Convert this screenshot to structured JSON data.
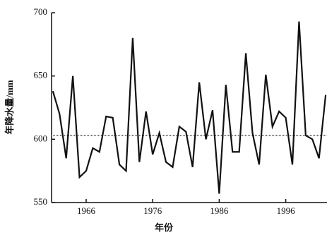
{
  "chart_data": {
    "type": "line",
    "x_label": "年份",
    "y_label": "年降水量/mm",
    "x": [
      1961,
      1962,
      1963,
      1964,
      1965,
      1966,
      1967,
      1968,
      1969,
      1970,
      1971,
      1972,
      1973,
      1974,
      1975,
      1976,
      1977,
      1978,
      1979,
      1980,
      1981,
      1982,
      1983,
      1984,
      1985,
      1986,
      1987,
      1988,
      1989,
      1990,
      1991,
      1992,
      1993,
      1994,
      1995,
      1996,
      1997,
      1998,
      1999,
      2000,
      2001,
      2002
    ],
    "series": [
      {
        "color": "#111111",
        "values": [
          638,
          620,
          585,
          650,
          570,
          575,
          593,
          590,
          618,
          617,
          580,
          575,
          680,
          582,
          622,
          588,
          605,
          582,
          578,
          610,
          606,
          578,
          645,
          600,
          623,
          557,
          643,
          590,
          590,
          668,
          605,
          580,
          651,
          610,
          622,
          617,
          580,
          693,
          603,
          600,
          585,
          635
        ]
      }
    ],
    "reference_line": 603,
    "reference_color": "#777777",
    "xlim": [
      1960.8,
      2002.2
    ],
    "xticks": [
      1966,
      1976,
      1986,
      1996
    ],
    "ylim": [
      550,
      700
    ],
    "yticks": [
      550,
      600,
      650,
      700
    ]
  }
}
